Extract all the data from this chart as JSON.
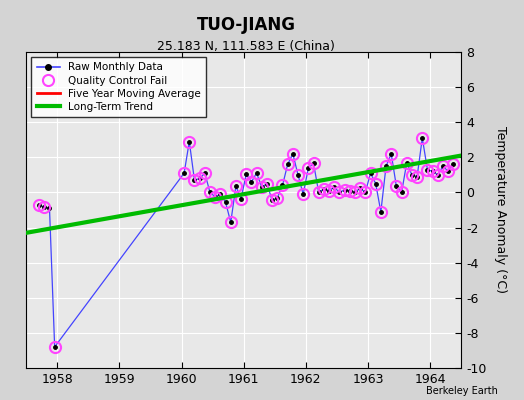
{
  "title": "TUO-JIANG",
  "subtitle": "25.183 N, 111.583 E (China)",
  "ylabel": "Temperature Anomaly (°C)",
  "credit": "Berkeley Earth",
  "ylim": [
    -10,
    8
  ],
  "yticks": [
    -10,
    -8,
    -6,
    -4,
    -2,
    0,
    2,
    4,
    6,
    8
  ],
  "xlim": [
    1957.5,
    1964.5
  ],
  "xticks": [
    1958,
    1959,
    1960,
    1961,
    1962,
    1963,
    1964
  ],
  "fig_bg_color": "#d4d4d4",
  "ax_bg_color": "#e8e8e8",
  "raw_x": [
    1957.708,
    1957.792,
    1957.875,
    1957.958,
    1960.042,
    1960.125,
    1960.208,
    1960.292,
    1960.375,
    1960.458,
    1960.542,
    1960.625,
    1960.708,
    1960.792,
    1960.875,
    1960.958,
    1961.042,
    1961.125,
    1961.208,
    1961.292,
    1961.375,
    1961.458,
    1961.542,
    1961.625,
    1961.708,
    1961.792,
    1961.875,
    1961.958,
    1962.042,
    1962.125,
    1962.208,
    1962.292,
    1962.375,
    1962.458,
    1962.542,
    1962.625,
    1962.708,
    1962.792,
    1962.875,
    1962.958,
    1963.042,
    1963.125,
    1963.208,
    1963.292,
    1963.375,
    1963.458,
    1963.542,
    1963.625,
    1963.708,
    1963.792,
    1963.875,
    1963.958,
    1964.042,
    1964.125,
    1964.208,
    1964.292,
    1964.375
  ],
  "raw_y": [
    -0.7,
    -0.85,
    -0.9,
    -8.8,
    1.1,
    2.9,
    0.7,
    0.8,
    1.1,
    0.0,
    -0.25,
    -0.1,
    -0.55,
    -1.7,
    0.35,
    -0.35,
    1.05,
    0.6,
    1.1,
    0.3,
    0.5,
    -0.45,
    -0.3,
    0.4,
    1.6,
    2.2,
    1.0,
    -0.1,
    1.4,
    1.65,
    0.0,
    0.2,
    0.1,
    0.3,
    0.0,
    0.15,
    0.1,
    0.0,
    0.25,
    0.0,
    1.1,
    0.5,
    -1.1,
    1.5,
    2.2,
    0.35,
    0.0,
    1.7,
    1.0,
    0.9,
    3.1,
    1.3,
    1.2,
    1.0,
    1.5,
    1.2,
    1.6
  ],
  "qc_fail_x": [
    1957.708,
    1957.792,
    1957.958,
    1960.042,
    1960.125,
    1960.208,
    1960.292,
    1960.375,
    1960.458,
    1960.542,
    1960.625,
    1960.708,
    1960.792,
    1960.875,
    1960.958,
    1961.042,
    1961.125,
    1961.208,
    1961.292,
    1961.375,
    1961.458,
    1961.542,
    1961.625,
    1961.708,
    1961.792,
    1961.875,
    1961.958,
    1962.042,
    1962.125,
    1962.208,
    1962.292,
    1962.375,
    1962.458,
    1962.542,
    1962.625,
    1962.708,
    1962.792,
    1962.875,
    1962.958,
    1963.042,
    1963.125,
    1963.208,
    1963.292,
    1963.375,
    1963.458,
    1963.542,
    1963.625,
    1963.708,
    1963.792,
    1963.875,
    1963.958,
    1964.042,
    1964.125,
    1964.208,
    1964.292,
    1964.375
  ],
  "qc_fail_y": [
    -0.7,
    -0.85,
    -8.8,
    1.1,
    2.9,
    0.7,
    0.8,
    1.1,
    0.0,
    -0.25,
    -0.1,
    -0.55,
    -1.7,
    0.35,
    -0.35,
    1.05,
    0.6,
    1.1,
    0.3,
    0.5,
    -0.45,
    -0.3,
    0.4,
    1.6,
    2.2,
    1.0,
    -0.1,
    1.4,
    1.65,
    0.0,
    0.2,
    0.1,
    0.3,
    0.0,
    0.15,
    0.1,
    0.0,
    0.25,
    0.0,
    1.1,
    0.5,
    -1.1,
    1.5,
    2.2,
    0.35,
    0.0,
    1.7,
    1.0,
    0.9,
    3.1,
    1.3,
    1.2,
    1.0,
    1.5,
    1.2,
    1.6
  ],
  "trend_x": [
    1957.5,
    1964.5
  ],
  "trend_y": [
    -2.3,
    2.1
  ],
  "raw_color": "#4444ff",
  "dot_color": "#000000",
  "qc_color": "#ff44ff",
  "trend_color": "#00bb00",
  "mavg_color": "#ff0000"
}
